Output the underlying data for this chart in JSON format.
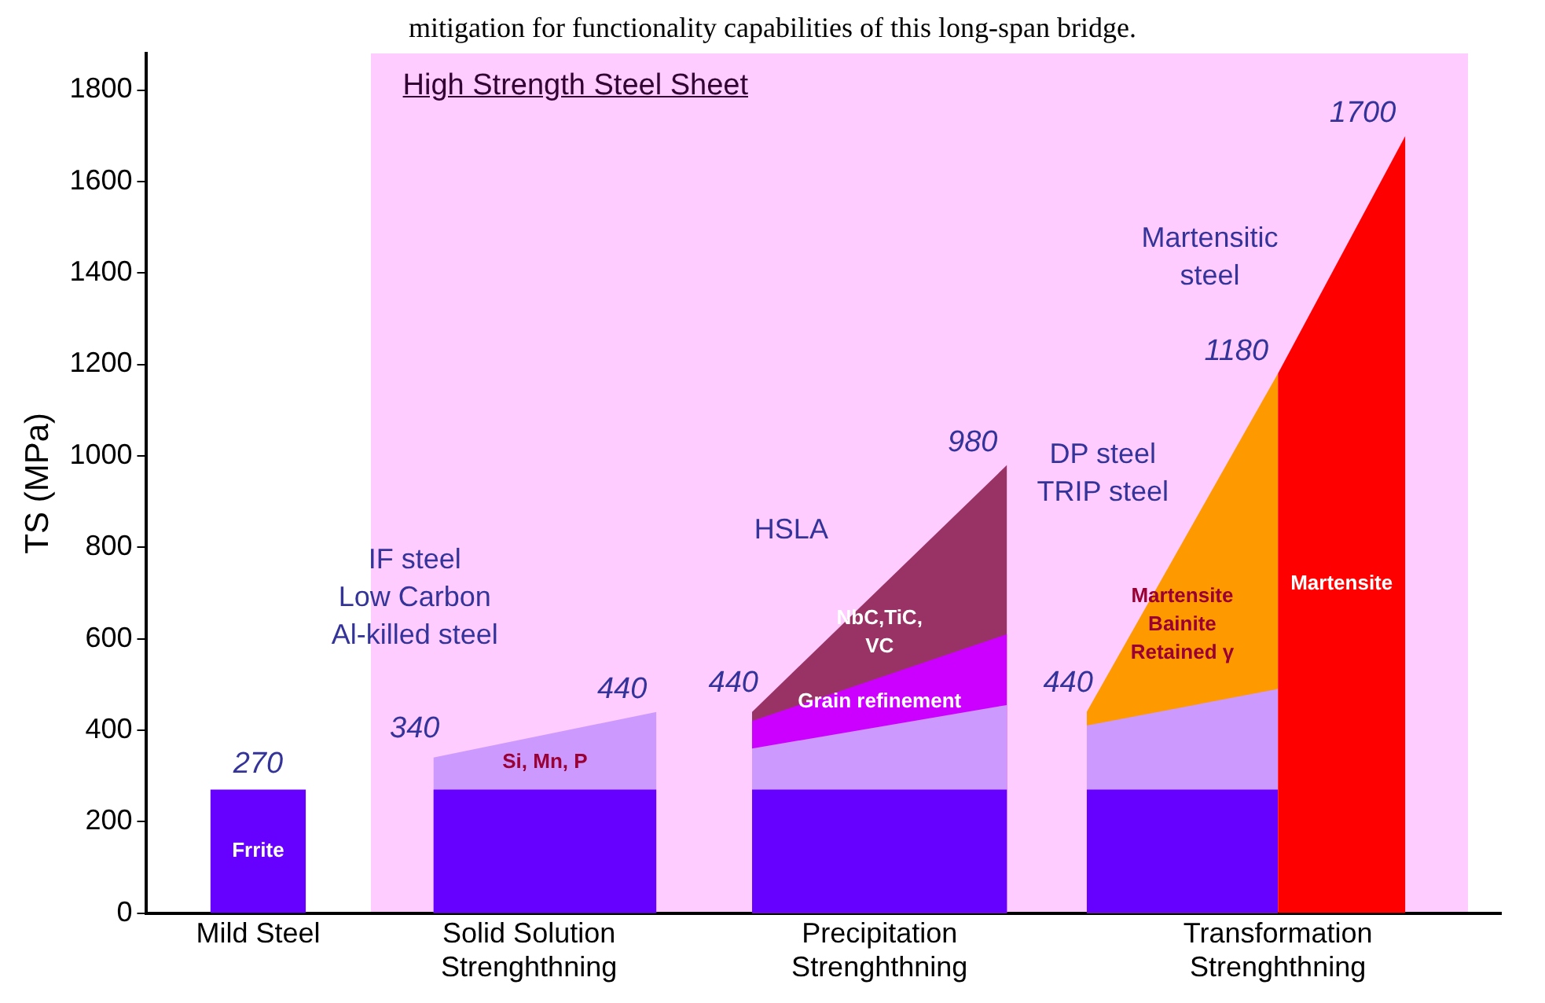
{
  "chart_data": {
    "type": "area",
    "annotations": [
      "mitigation for functionality capabilities of this long-span bridge.",
      "High Strength Steel Sheet",
      "IF steel\nLow Carbon\nAl-killed steel",
      "HSLA",
      "DP steel\nTRIP steel",
      "Martensitic\nsteel"
    ],
    "ylabel": "TS (MPa)",
    "categories": [
      null,
      null,
      null,
      null,
      null,
      null,
      null,
      "Mild Steel",
      null,
      null,
      null,
      null,
      null,
      null,
      null,
      null,
      null,
      null,
      null,
      null,
      null,
      null,
      null,
      null,
      "Solid Solution\nStrenghthning",
      null,
      null,
      null,
      null,
      null,
      null,
      null,
      null,
      null,
      null,
      null,
      null,
      null,
      null,
      null,
      null,
      null,
      null,
      null,
      null,
      null,
      "Precipitation\nStrenghthning",
      null,
      null,
      null,
      null,
      null,
      null,
      null,
      null,
      null,
      null,
      null,
      null,
      null,
      null,
      null,
      null,
      null,
      null,
      null,
      null,
      null,
      null,
      null,
      null,
      "Transformation\nStrenghthning",
      null,
      null,
      null,
      null,
      null,
      null,
      null,
      null,
      null,
      null,
      null,
      null,
      null,
      null
    ],
    "ylim": [
      0,
      1880
    ],
    "yticks": [
      0,
      200,
      400,
      600,
      800,
      1000,
      1200,
      1400,
      1600,
      1800
    ],
    "grid": false,
    "legend": false,
    "series": [
      {
        "name": "Frrite",
        "color": "#6600ff",
        "values": [
          null,
          null,
          null,
          null,
          270,
          null,
          null,
          270,
          null,
          null,
          270,
          null,
          null,
          null,
          null,
          null,
          null,
          null,
          null,
          null,
          null,
          null,
          null,
          null,
          null,
          null,
          null,
          null,
          null,
          null,
          null,
          null,
          null,
          null,
          null,
          null,
          null,
          null,
          null,
          null,
          null,
          null,
          null,
          null,
          null,
          null,
          null,
          null,
          null,
          null,
          null,
          null,
          null,
          null,
          null,
          null,
          null,
          null,
          null,
          null,
          null,
          null,
          null,
          null,
          null,
          null,
          null,
          null,
          null,
          null,
          null,
          null,
          null,
          null,
          null,
          null,
          null,
          null,
          null,
          null,
          null,
          null,
          null,
          null,
          null,
          null
        ],
        "value_labels": [
          null,
          null,
          null,
          null,
          null,
          null,
          null,
          "270",
          null,
          null,
          null,
          null,
          null,
          null,
          null,
          null,
          null,
          null,
          null,
          null,
          null,
          null,
          null,
          null,
          null,
          null,
          null,
          null,
          null,
          null,
          null,
          null,
          null,
          null,
          null,
          null,
          null,
          null,
          null,
          null,
          null,
          null,
          null,
          null,
          null,
          null,
          null,
          null,
          null,
          null,
          null,
          null,
          null,
          null,
          null,
          null,
          null,
          null,
          null,
          null,
          null,
          null,
          null,
          null,
          null,
          null,
          null,
          null,
          null,
          null,
          null,
          null,
          null,
          null,
          null,
          null,
          null,
          null,
          null,
          null,
          null,
          null,
          null,
          null,
          null,
          null
        ]
      },
      {
        "name": "Si, Mn, P",
        "color": "#cc99ff",
        "values": [
          null,
          null,
          null,
          null,
          null,
          null,
          null,
          null,
          null,
          null,
          null,
          null,
          null,
          null,
          null,
          null,
          null,
          null,
          340,
          null,
          null,
          null,
          null,
          null,
          null,
          null,
          null,
          null,
          null,
          null,
          null,
          null,
          440,
          null,
          null,
          null,
          null,
          null,
          null,
          null,
          null,
          null,
          null,
          null,
          null,
          null,
          null,
          null,
          null,
          null,
          null,
          null,
          null,
          null,
          null,
          null,
          null,
          null,
          null,
          null,
          null,
          null,
          null,
          null,
          null,
          null,
          null,
          null,
          null,
          null,
          null,
          null,
          null,
          null,
          null,
          null,
          null,
          null,
          null,
          null,
          null,
          null,
          null,
          null,
          null,
          null
        ],
        "value_labels": [
          null,
          null,
          null,
          null,
          null,
          null,
          null,
          null,
          null,
          null,
          null,
          null,
          null,
          null,
          null,
          null,
          null,
          null,
          "340",
          null,
          null,
          null,
          null,
          null,
          null,
          null,
          null,
          null,
          null,
          null,
          null,
          null,
          "440",
          null,
          null,
          null,
          null,
          null,
          null,
          null,
          null,
          null,
          null,
          null,
          null,
          null,
          null,
          null,
          null,
          null,
          null,
          null,
          null,
          null,
          null,
          null,
          null,
          null,
          null,
          null,
          null,
          null,
          null,
          null,
          null,
          null,
          null,
          null,
          null,
          null,
          null,
          null,
          null,
          null,
          null,
          null,
          null,
          null,
          null,
          null,
          null,
          null,
          null,
          null,
          null,
          null
        ]
      },
      {
        "color": "#6600ff",
        "values": [
          null,
          null,
          null,
          null,
          null,
          null,
          null,
          null,
          null,
          null,
          null,
          null,
          null,
          null,
          null,
          null,
          null,
          null,
          270,
          null,
          null,
          null,
          null,
          null,
          null,
          null,
          null,
          null,
          null,
          null,
          null,
          null,
          270,
          null,
          null,
          null,
          null,
          null,
          null,
          null,
          null,
          null,
          null,
          null,
          null,
          null,
          null,
          null,
          null,
          null,
          null,
          null,
          null,
          null,
          null,
          null,
          null,
          null,
          null,
          null,
          null,
          null,
          null,
          null,
          null,
          null,
          null,
          null,
          null,
          null,
          null,
          null,
          null,
          null,
          null,
          null,
          null,
          null,
          null,
          null,
          null,
          null,
          null,
          null,
          null,
          null
        ]
      },
      {
        "name": "NbC,TiC,\nVC",
        "color": "#993366",
        "values": [
          null,
          null,
          null,
          null,
          null,
          null,
          null,
          null,
          null,
          null,
          null,
          null,
          null,
          null,
          null,
          null,
          null,
          null,
          null,
          null,
          null,
          null,
          null,
          null,
          null,
          null,
          null,
          null,
          null,
          null,
          null,
          null,
          null,
          null,
          null,
          null,
          null,
          null,
          440,
          null,
          null,
          null,
          null,
          null,
          null,
          null,
          null,
          null,
          null,
          null,
          null,
          null,
          null,
          null,
          980,
          null,
          null,
          null,
          null,
          null,
          null,
          null,
          null,
          null,
          null,
          null,
          null,
          null,
          null,
          null,
          null,
          null,
          null,
          null,
          null,
          null,
          null,
          null,
          null,
          null,
          null,
          null,
          null,
          null,
          null,
          null
        ],
        "value_labels": [
          null,
          null,
          null,
          null,
          null,
          null,
          null,
          null,
          null,
          null,
          null,
          null,
          null,
          null,
          null,
          null,
          null,
          null,
          null,
          null,
          null,
          null,
          null,
          null,
          null,
          null,
          null,
          null,
          null,
          null,
          null,
          null,
          null,
          null,
          null,
          null,
          null,
          null,
          "440",
          null,
          null,
          null,
          null,
          null,
          null,
          null,
          null,
          null,
          null,
          null,
          null,
          null,
          null,
          null,
          "980",
          null,
          null,
          null,
          null,
          null,
          null,
          null,
          null,
          null,
          null,
          null,
          null,
          null,
          null,
          null,
          null,
          null,
          null,
          null,
          null,
          null,
          null,
          null,
          null,
          null,
          null,
          null,
          null,
          null,
          null,
          null
        ]
      },
      {
        "name": "Grain refinement",
        "color": "#cc00ff",
        "values": [
          null,
          null,
          null,
          null,
          null,
          null,
          null,
          null,
          null,
          null,
          null,
          null,
          null,
          null,
          null,
          null,
          null,
          null,
          null,
          null,
          null,
          null,
          null,
          null,
          null,
          null,
          null,
          null,
          null,
          null,
          null,
          null,
          null,
          null,
          null,
          null,
          null,
          null,
          420,
          null,
          null,
          null,
          null,
          null,
          null,
          null,
          null,
          null,
          null,
          null,
          null,
          null,
          null,
          null,
          610,
          null,
          null,
          null,
          null,
          null,
          null,
          null,
          null,
          null,
          null,
          null,
          null,
          null,
          null,
          null,
          null,
          null,
          null,
          null,
          null,
          null,
          null,
          null,
          null,
          null,
          null,
          null,
          null,
          null,
          null,
          null
        ]
      },
      {
        "color": "#cc99ff",
        "values": [
          null,
          null,
          null,
          null,
          null,
          null,
          null,
          null,
          null,
          null,
          null,
          null,
          null,
          null,
          null,
          null,
          null,
          null,
          null,
          null,
          null,
          null,
          null,
          null,
          null,
          null,
          null,
          null,
          null,
          null,
          null,
          null,
          null,
          null,
          null,
          null,
          null,
          null,
          360,
          null,
          null,
          null,
          null,
          null,
          null,
          null,
          null,
          null,
          null,
          null,
          null,
          null,
          null,
          null,
          455,
          null,
          null,
          null,
          null,
          null,
          null,
          null,
          null,
          null,
          null,
          null,
          null,
          null,
          null,
          null,
          null,
          null,
          null,
          null,
          null,
          null,
          null,
          null,
          null,
          null,
          null,
          null,
          null,
          null,
          null,
          null
        ]
      },
      {
        "color": "#6600ff",
        "values": [
          null,
          null,
          null,
          null,
          null,
          null,
          null,
          null,
          null,
          null,
          null,
          null,
          null,
          null,
          null,
          null,
          null,
          null,
          null,
          null,
          null,
          null,
          null,
          null,
          null,
          null,
          null,
          null,
          null,
          null,
          null,
          null,
          null,
          null,
          null,
          null,
          null,
          null,
          270,
          null,
          null,
          null,
          null,
          null,
          null,
          null,
          null,
          null,
          null,
          null,
          null,
          null,
          null,
          null,
          270,
          null,
          null,
          null,
          null,
          null,
          null,
          null,
          null,
          null,
          null,
          null,
          null,
          null,
          null,
          null,
          null,
          null,
          null,
          null,
          null,
          null,
          null,
          null,
          null,
          null,
          null,
          null,
          null,
          null,
          null,
          null
        ]
      },
      {
        "name": "Martensite\nBainite\nRetained γ",
        "color": "#ff9900",
        "values": [
          null,
          null,
          null,
          null,
          null,
          null,
          null,
          null,
          null,
          null,
          null,
          null,
          null,
          null,
          null,
          null,
          null,
          null,
          null,
          null,
          null,
          null,
          null,
          null,
          null,
          null,
          null,
          null,
          null,
          null,
          null,
          null,
          null,
          null,
          null,
          null,
          null,
          null,
          null,
          null,
          null,
          null,
          null,
          null,
          null,
          null,
          null,
          null,
          null,
          null,
          null,
          null,
          null,
          null,
          null,
          null,
          null,
          null,
          null,
          440,
          null,
          null,
          null,
          null,
          null,
          null,
          null,
          null,
          null,
          null,
          null,
          1180,
          null,
          null,
          null,
          null,
          null,
          null,
          null,
          null,
          null,
          null,
          null,
          null,
          null,
          null
        ],
        "value_labels": [
          null,
          null,
          null,
          null,
          null,
          null,
          null,
          null,
          null,
          null,
          null,
          null,
          null,
          null,
          null,
          null,
          null,
          null,
          null,
          null,
          null,
          null,
          null,
          null,
          null,
          null,
          null,
          null,
          null,
          null,
          null,
          null,
          null,
          null,
          null,
          null,
          null,
          null,
          null,
          null,
          null,
          null,
          null,
          null,
          null,
          null,
          null,
          null,
          null,
          null,
          null,
          null,
          null,
          null,
          null,
          null,
          null,
          null,
          null,
          "440",
          null,
          null,
          null,
          null,
          null,
          null,
          null,
          null,
          null,
          null,
          null,
          "1180",
          null,
          null,
          null,
          null,
          null,
          null,
          null,
          null,
          null,
          null,
          null,
          null,
          null,
          null
        ]
      },
      {
        "color": "#cc99ff",
        "values": [
          null,
          null,
          null,
          null,
          null,
          null,
          null,
          null,
          null,
          null,
          null,
          null,
          null,
          null,
          null,
          null,
          null,
          null,
          null,
          null,
          null,
          null,
          null,
          null,
          null,
          null,
          null,
          null,
          null,
          null,
          null,
          null,
          null,
          null,
          null,
          null,
          null,
          null,
          null,
          null,
          null,
          null,
          null,
          null,
          null,
          null,
          null,
          null,
          null,
          null,
          null,
          null,
          null,
          null,
          null,
          null,
          null,
          null,
          null,
          410,
          null,
          null,
          null,
          null,
          null,
          null,
          null,
          null,
          null,
          null,
          null,
          490,
          null,
          null,
          null,
          null,
          null,
          null,
          null,
          null,
          null,
          null,
          null,
          null,
          null,
          null
        ]
      },
      {
        "color": "#6600ff",
        "values": [
          null,
          null,
          null,
          null,
          null,
          null,
          null,
          null,
          null,
          null,
          null,
          null,
          null,
          null,
          null,
          null,
          null,
          null,
          null,
          null,
          null,
          null,
          null,
          null,
          null,
          null,
          null,
          null,
          null,
          null,
          null,
          null,
          null,
          null,
          null,
          null,
          null,
          null,
          null,
          null,
          null,
          null,
          null,
          null,
          null,
          null,
          null,
          null,
          null,
          null,
          null,
          null,
          null,
          null,
          null,
          null,
          null,
          null,
          null,
          270,
          null,
          null,
          null,
          null,
          null,
          null,
          null,
          null,
          null,
          null,
          null,
          270,
          null,
          null,
          null,
          null,
          null,
          null,
          null,
          null,
          null,
          null,
          null,
          null,
          null,
          null
        ]
      },
      {
        "name": "Martensite",
        "color": "#ff0000",
        "values": [
          null,
          null,
          null,
          null,
          null,
          null,
          null,
          null,
          null,
          null,
          null,
          null,
          null,
          null,
          null,
          null,
          null,
          null,
          null,
          null,
          null,
          null,
          null,
          null,
          null,
          null,
          null,
          null,
          null,
          null,
          null,
          null,
          null,
          null,
          null,
          null,
          null,
          null,
          null,
          null,
          null,
          null,
          null,
          null,
          null,
          null,
          null,
          null,
          null,
          null,
          null,
          null,
          null,
          null,
          null,
          null,
          null,
          null,
          null,
          null,
          null,
          null,
          null,
          null,
          null,
          null,
          null,
          null,
          null,
          null,
          null,
          1180,
          null,
          null,
          null,
          null,
          null,
          null,
          null,
          1700,
          null,
          null,
          null,
          null,
          null,
          null
        ],
        "value_labels": [
          null,
          null,
          null,
          null,
          null,
          null,
          null,
          null,
          null,
          null,
          null,
          null,
          null,
          null,
          null,
          null,
          null,
          null,
          null,
          null,
          null,
          null,
          null,
          null,
          null,
          null,
          null,
          null,
          null,
          null,
          null,
          null,
          null,
          null,
          null,
          null,
          null,
          null,
          null,
          null,
          null,
          null,
          null,
          null,
          null,
          null,
          null,
          null,
          null,
          null,
          null,
          null,
          null,
          null,
          null,
          null,
          null,
          null,
          null,
          null,
          null,
          null,
          null,
          null,
          null,
          null,
          null,
          null,
          null,
          null,
          null,
          null,
          null,
          null,
          null,
          null,
          null,
          null,
          null,
          "1700",
          null,
          null,
          null,
          null,
          null,
          null
        ]
      }
    ]
  }
}
